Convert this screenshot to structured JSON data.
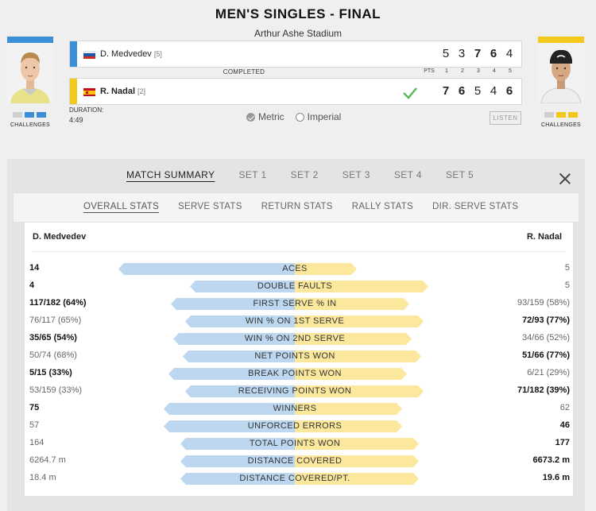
{
  "match": {
    "title": "MEN'S SINGLES - FINAL",
    "venue": "Arthur Ashe Stadium",
    "status": "COMPLETED",
    "duration_label": "DURATION:",
    "duration": "4:49"
  },
  "colors": {
    "player1": "#3a8fd6",
    "player2": "#f2c81a",
    "player1_bar": "#bcd7ef",
    "player2_bar": "#fbe89d"
  },
  "players": [
    {
      "name": "D. Medvedev",
      "seed": "[5]",
      "country_flag": "russia-flag",
      "sets": [
        "5",
        "3",
        "7",
        "6",
        "4"
      ],
      "sets_won": [
        false,
        false,
        true,
        true,
        false
      ],
      "challenges_label": "CHALLENGES",
      "challenges": [
        "used",
        "remaining",
        "remaining"
      ],
      "winner": false
    },
    {
      "name": "R. Nadal",
      "seed": "[2]",
      "country_flag": "spain-flag",
      "sets": [
        "7",
        "6",
        "5",
        "4",
        "6"
      ],
      "sets_won": [
        true,
        true,
        false,
        false,
        true
      ],
      "challenges_label": "CHALLENGES",
      "challenges": [
        "used",
        "remaining",
        "remaining"
      ],
      "winner": true
    }
  ],
  "score_header": [
    "PTS",
    "1",
    "2",
    "3",
    "4",
    "5"
  ],
  "units": {
    "metric": "Metric",
    "imperial": "Imperial",
    "selected": "metric"
  },
  "listen_label": "LISTEN",
  "tabs": [
    "MATCH SUMMARY",
    "SET 1",
    "SET 2",
    "SET 3",
    "SET 4",
    "SET 5"
  ],
  "subtabs": [
    "OVERALL STATS",
    "SERVE STATS",
    "RETURN STATS",
    "RALLY STATS",
    "DIR. SERVE STATS"
  ],
  "stats": {
    "player1_header": "D. Medvedev",
    "player2_header": "R. Nadal",
    "rows": [
      {
        "label": "ACES",
        "p1": "14",
        "p2": "5",
        "p1_share": 0.74,
        "p2_share": 0.26,
        "lead": "p1"
      },
      {
        "label": "DOUBLE FAULTS",
        "p1": "4",
        "p2": "5",
        "p1_share": 0.44,
        "p2_share": 0.56,
        "lead": "p1"
      },
      {
        "label": "FIRST SERVE % IN",
        "p1": "117/182 (64%)",
        "p2": "93/159 (58%)",
        "p1_share": 0.52,
        "p2_share": 0.48,
        "lead": "p1"
      },
      {
        "label": "WIN % ON 1ST SERVE",
        "p1": "76/117 (65%)",
        "p2": "72/93 (77%)",
        "p1_share": 0.46,
        "p2_share": 0.54,
        "lead": "p2"
      },
      {
        "label": "WIN % ON 2ND SERVE",
        "p1": "35/65 (54%)",
        "p2": "34/66 (52%)",
        "p1_share": 0.51,
        "p2_share": 0.49,
        "lead": "p1"
      },
      {
        "label": "NET POINTS WON",
        "p1": "50/74 (68%)",
        "p2": "51/66 (77%)",
        "p1_share": 0.47,
        "p2_share": 0.53,
        "lead": "p2"
      },
      {
        "label": "BREAK POINTS WON",
        "p1": "5/15 (33%)",
        "p2": "6/21 (29%)",
        "p1_share": 0.53,
        "p2_share": 0.47,
        "lead": "p1"
      },
      {
        "label": "RECEIVING POINTS WON",
        "p1": "53/159 (33%)",
        "p2": "71/182 (39%)",
        "p1_share": 0.46,
        "p2_share": 0.54,
        "lead": "p2"
      },
      {
        "label": "WINNERS",
        "p1": "75",
        "p2": "62",
        "p1_share": 0.55,
        "p2_share": 0.45,
        "lead": "p1"
      },
      {
        "label": "UNFORCED ERRORS",
        "p1": "57",
        "p2": "46",
        "p1_share": 0.55,
        "p2_share": 0.45,
        "lead": "p2"
      },
      {
        "label": "TOTAL POINTS WON",
        "p1": "164",
        "p2": "177",
        "p1_share": 0.48,
        "p2_share": 0.52,
        "lead": "p2"
      },
      {
        "label": "DISTANCE COVERED",
        "p1": "6264.7 m",
        "p2": "6673.2 m",
        "p1_share": 0.48,
        "p2_share": 0.52,
        "lead": "p2"
      },
      {
        "label": "DISTANCE COVERED/PT.",
        "p1": "18.4 m",
        "p2": "19.6 m",
        "p1_share": 0.48,
        "p2_share": 0.52,
        "lead": "p2"
      }
    ]
  }
}
